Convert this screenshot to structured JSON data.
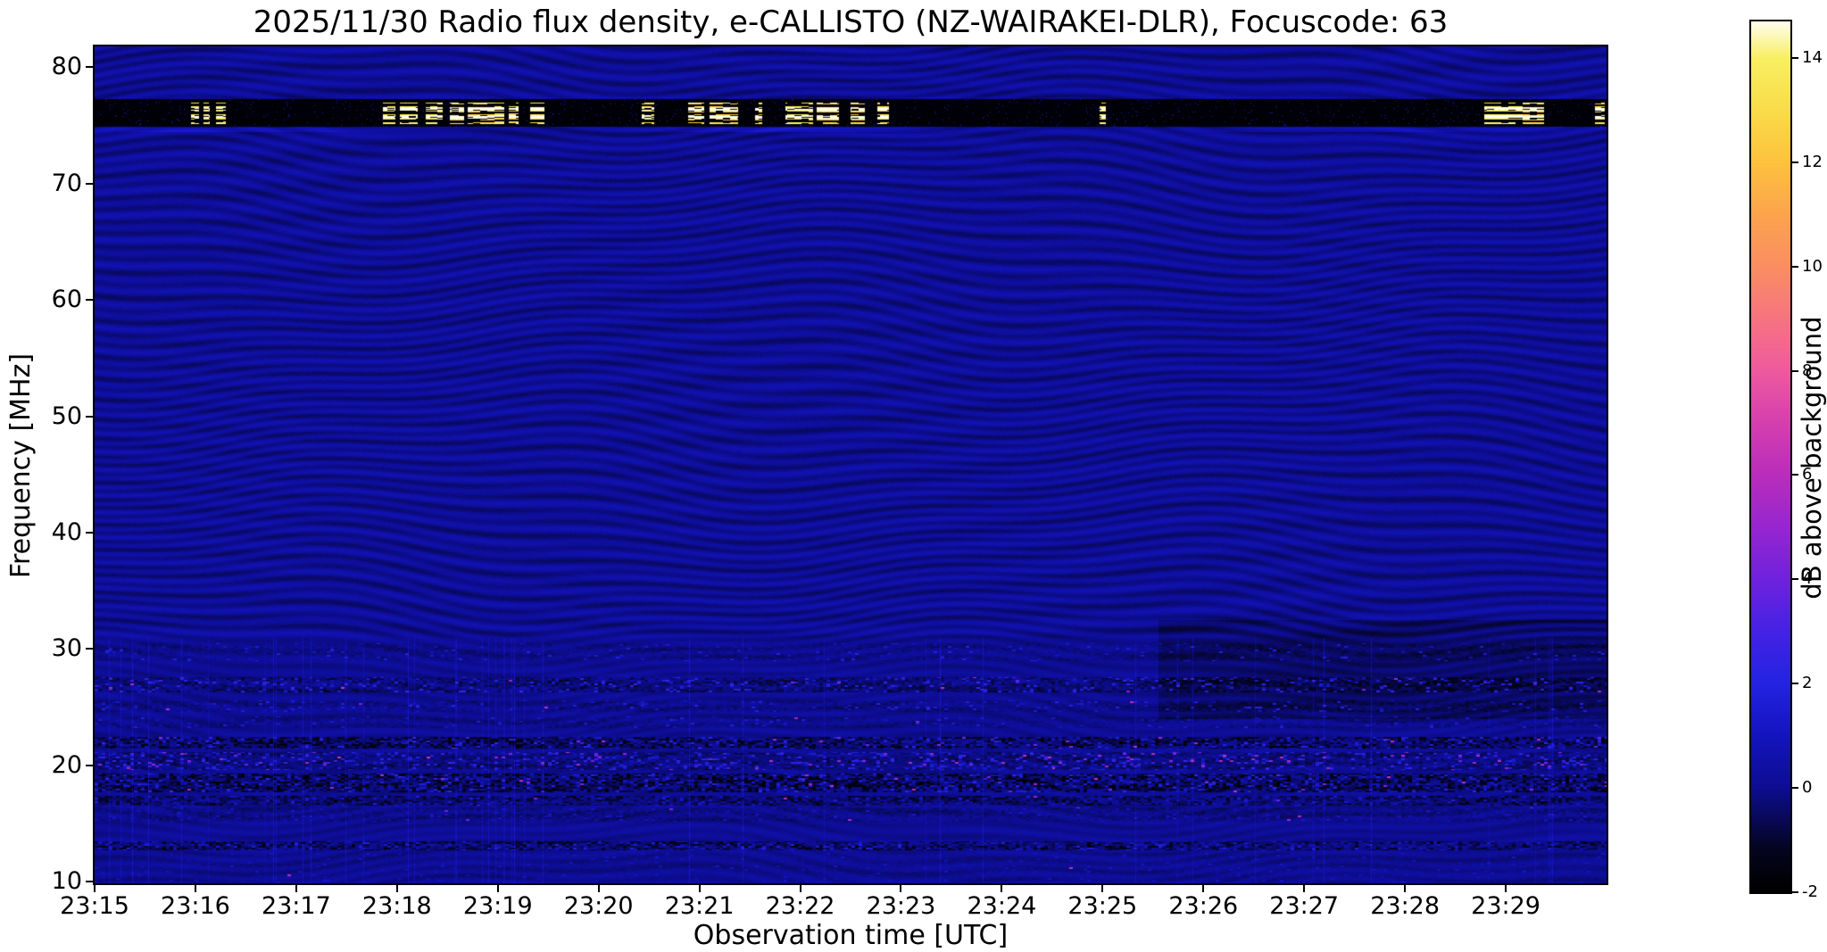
{
  "page": {
    "background_color": "#ffffff"
  },
  "chart_data": {
    "type": "heatmap",
    "title": "2025/11/30  Radio flux density, e-CALLISTO (NZ-WAIRAKEI-DLR), Focuscode: 63",
    "date": "2025/11/30",
    "station": "NZ-WAIRAKEI-DLR",
    "focuscode": "63",
    "xlabel": "Observation time [UTC]",
    "ylabel": "Frequency [MHz]",
    "x_tick_labels": [
      "23:15",
      "23:16",
      "23:17",
      "23:18",
      "23:19",
      "23:20",
      "23:21",
      "23:22",
      "23:23",
      "23:24",
      "23:25",
      "23:26",
      "23:27",
      "23:28",
      "23:29"
    ],
    "x_tick_minutes": [
      0,
      1,
      2,
      3,
      4,
      5,
      6,
      7,
      8,
      9,
      10,
      11,
      12,
      13,
      14
    ],
    "time_span_minutes": 15,
    "y_tick_values": [
      10,
      20,
      30,
      40,
      50,
      60,
      70,
      80
    ],
    "freq_range_mhz": [
      9.85,
      81.8
    ],
    "colorbar": {
      "label": "dB above background",
      "tick_values": [
        -2,
        0,
        2,
        4,
        6,
        8,
        10,
        12,
        14
      ],
      "value_range_db": [
        -2.0,
        14.7
      ],
      "colormap_stops": [
        [
          -2.0,
          "#000000"
        ],
        [
          -1.2,
          "#04041f"
        ],
        [
          0.0,
          "#0d0d92"
        ],
        [
          1.0,
          "#1414bf"
        ],
        [
          2.0,
          "#2323e2"
        ],
        [
          3.0,
          "#4522e4"
        ],
        [
          4.0,
          "#6f22dd"
        ],
        [
          5.0,
          "#9726cf"
        ],
        [
          6.0,
          "#b92dbb"
        ],
        [
          7.0,
          "#d53fae"
        ],
        [
          8.0,
          "#ee5a9e"
        ],
        [
          9.0,
          "#f67480"
        ],
        [
          10.0,
          "#fa8e62"
        ],
        [
          11.0,
          "#fca44d"
        ],
        [
          12.0,
          "#fdc23e"
        ],
        [
          13.0,
          "#f9dc49"
        ],
        [
          14.0,
          "#f8ef63"
        ],
        [
          14.7,
          "#fffef0"
        ]
      ]
    },
    "background_level_db": 0.1,
    "features": {
      "rfi_band_76mhz": {
        "band_freq_range_mhz": [
          74.9,
          77.3
        ],
        "burst_freq_range_mhz": [
          75.15,
          77.0
        ],
        "band_level_db": -2,
        "burst_peak_db": 14.7,
        "burst_segments_min": [
          [
            0.95,
            1.03
          ],
          [
            1.08,
            1.14
          ],
          [
            1.2,
            1.3
          ],
          [
            2.86,
            2.98
          ],
          [
            3.02,
            3.2
          ],
          [
            3.28,
            3.45
          ],
          [
            3.52,
            3.66
          ],
          [
            3.7,
            4.06
          ],
          [
            4.1,
            4.2
          ],
          [
            4.32,
            4.46
          ],
          [
            5.42,
            5.55
          ],
          [
            5.88,
            6.04
          ],
          [
            6.1,
            6.38
          ],
          [
            6.55,
            6.62
          ],
          [
            6.85,
            7.12
          ],
          [
            7.16,
            7.38
          ],
          [
            7.5,
            7.64
          ],
          [
            7.76,
            7.88
          ],
          [
            9.97,
            10.03
          ],
          [
            13.78,
            14.38
          ],
          [
            14.88,
            14.98
          ]
        ]
      },
      "blue_edge_line_mhz": [
        74.45,
        74.85
      ],
      "low_freq_noise_bands": [
        {
          "freq_range": [
            29.0,
            30.5
          ],
          "density": 0.12,
          "peak_db": 1.8,
          "dark_db": -0.4,
          "pink_prob": 0.0
        },
        {
          "freq_range": [
            26.3,
            27.6
          ],
          "density": 0.38,
          "peak_db": 2.6,
          "dark_db": -1.0,
          "pink_prob": 0.015
        },
        {
          "freq_range": [
            24.6,
            25.6
          ],
          "density": 0.2,
          "peak_db": 2.0,
          "dark_db": -0.5,
          "pink_prob": 0.008
        },
        {
          "freq_range": [
            23.2,
            24.2
          ],
          "density": 0.15,
          "peak_db": 1.6,
          "dark_db": -0.4,
          "pink_prob": 0.004
        },
        {
          "freq_range": [
            21.5,
            22.5
          ],
          "density": 0.42,
          "peak_db": 2.2,
          "dark_db": -1.8,
          "pink_prob": 0.02
        },
        {
          "freq_range": [
            19.6,
            21.2
          ],
          "density": 0.5,
          "peak_db": 2.6,
          "dark_db": -0.8,
          "pink_prob": 0.045
        },
        {
          "freq_range": [
            17.7,
            19.3
          ],
          "density": 0.52,
          "peak_db": 2.2,
          "dark_db": -1.9,
          "pink_prob": 0.02
        },
        {
          "freq_range": [
            16.6,
            17.4
          ],
          "density": 0.3,
          "peak_db": 1.6,
          "dark_db": -1.3,
          "pink_prob": 0.006
        },
        {
          "freq_range": [
            15.2,
            16.4
          ],
          "density": 0.16,
          "peak_db": 1.2,
          "dark_db": -0.5,
          "pink_prob": 0.003
        },
        {
          "freq_range": [
            12.7,
            13.5
          ],
          "density": 0.6,
          "peak_db": 1.8,
          "dark_db": -1.5,
          "pink_prob": 0.004
        },
        {
          "freq_range": [
            10.0,
            12.5
          ],
          "density": 0.1,
          "peak_db": 1.0,
          "dark_db": -0.2,
          "pink_prob": 0.001
        }
      ],
      "background_darker_patch": {
        "time_range_min": [
          10.55,
          15
        ],
        "freq_range_mhz": [
          24.0,
          32.5
        ],
        "offset_db": -0.5
      },
      "vertical_streaks_below_mhz": 31
    }
  }
}
